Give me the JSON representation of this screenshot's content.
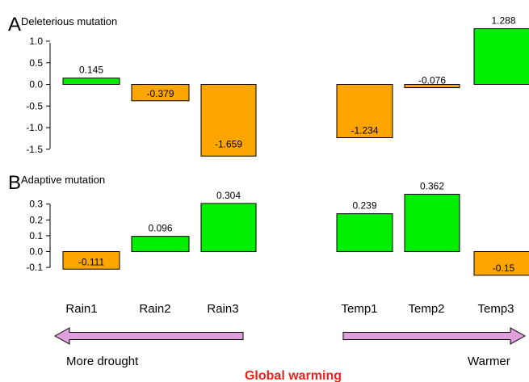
{
  "colors": {
    "positive": "#00ee00",
    "negative": "#ffa500",
    "arrow_fill": "#dda0dd",
    "warming_text": "#e8231e",
    "bar_stroke": "#000000"
  },
  "chart_data": [
    {
      "type": "bar",
      "panel_letter": "A",
      "title": "Deleterious mutation",
      "categories": [
        "Rain1",
        "Rain2",
        "Rain3",
        "Temp1",
        "Temp2",
        "Temp3"
      ],
      "values": [
        0.145,
        -0.379,
        -1.659,
        -1.234,
        -0.076,
        1.288
      ],
      "value_labels": [
        "0.145",
        "-0.379",
        "-1.659",
        "-1.234",
        "-0.076",
        "1.288"
      ],
      "yticks": [
        1.0,
        0.5,
        0.0,
        -0.5,
        -1.0,
        -1.5
      ],
      "ytick_labels": [
        "1.0",
        "0.5",
        "0.0",
        "-0.5",
        "-1.0",
        "-1.5"
      ],
      "ylim": [
        -1.659,
        1.288
      ],
      "grid": false,
      "legend": "none"
    },
    {
      "type": "bar",
      "panel_letter": "B",
      "title": "Adaptive mutation",
      "categories": [
        "Rain1",
        "Rain2",
        "Rain3",
        "Temp1",
        "Temp2",
        "Temp3"
      ],
      "values": [
        -0.111,
        0.096,
        0.304,
        0.239,
        0.362,
        -0.15
      ],
      "value_labels": [
        "-0.111",
        "0.096",
        "0.304",
        "0.239",
        "0.362",
        "-0.15"
      ],
      "yticks": [
        0.3,
        0.2,
        0.1,
        0.0,
        -0.1
      ],
      "ytick_labels": [
        "0.3",
        "0.2",
        "0.1",
        "0.0",
        "-0.1"
      ],
      "ylim": [
        -0.15,
        0.362
      ],
      "grid": false,
      "legend": "none"
    }
  ],
  "x_labels": [
    "Rain1",
    "Rain2",
    "Rain3",
    "Temp1",
    "Temp2",
    "Temp3"
  ],
  "arrows": {
    "left_label": "More drought",
    "right_label": "Warmer",
    "center_label": "Global warming"
  }
}
